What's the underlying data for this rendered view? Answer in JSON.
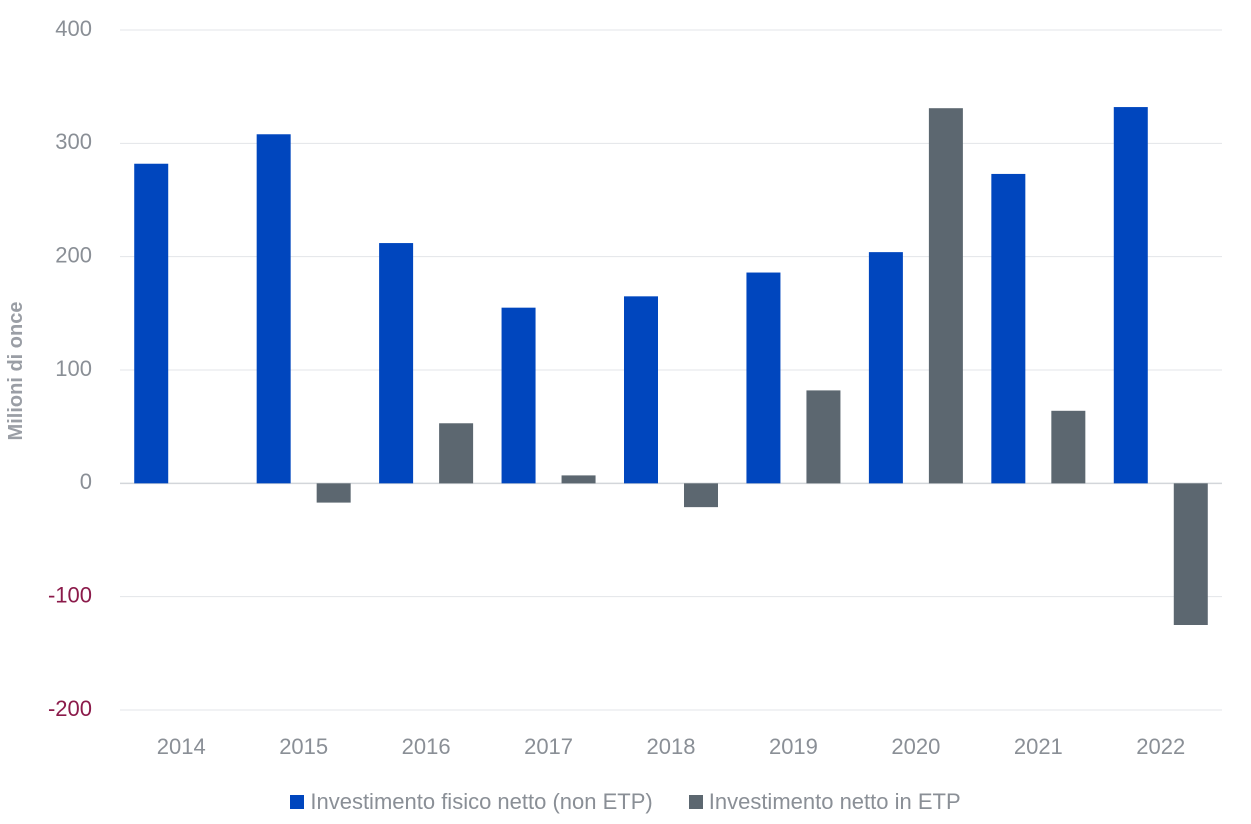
{
  "chart_data": {
    "type": "bar",
    "categories": [
      "2014",
      "2015",
      "2016",
      "2017",
      "2018",
      "2019",
      "2020",
      "2021",
      "2022"
    ],
    "series": [
      {
        "name": "Investimento fisico netto (non ETP)",
        "color": "#0046be",
        "values": [
          282,
          308,
          212,
          155,
          165,
          186,
          204,
          273,
          332
        ]
      },
      {
        "name": "Investimento netto in ETP",
        "color": "#5c6770",
        "values": [
          0,
          -17,
          53,
          7,
          -21,
          82,
          331,
          64,
          -125
        ]
      }
    ],
    "ylabel": "Milioni di once",
    "ylim": [
      -200,
      400
    ],
    "yticks": [
      "400",
      "300",
      "200",
      "100",
      "0",
      "-100",
      "-200"
    ],
    "ytick_values": [
      400,
      300,
      200,
      100,
      0,
      -100,
      -200
    ],
    "positive_tick_color": "#8a8f96",
    "negative_tick_color": "#8b1a4a",
    "grid": true,
    "legend_position": "bottom"
  }
}
